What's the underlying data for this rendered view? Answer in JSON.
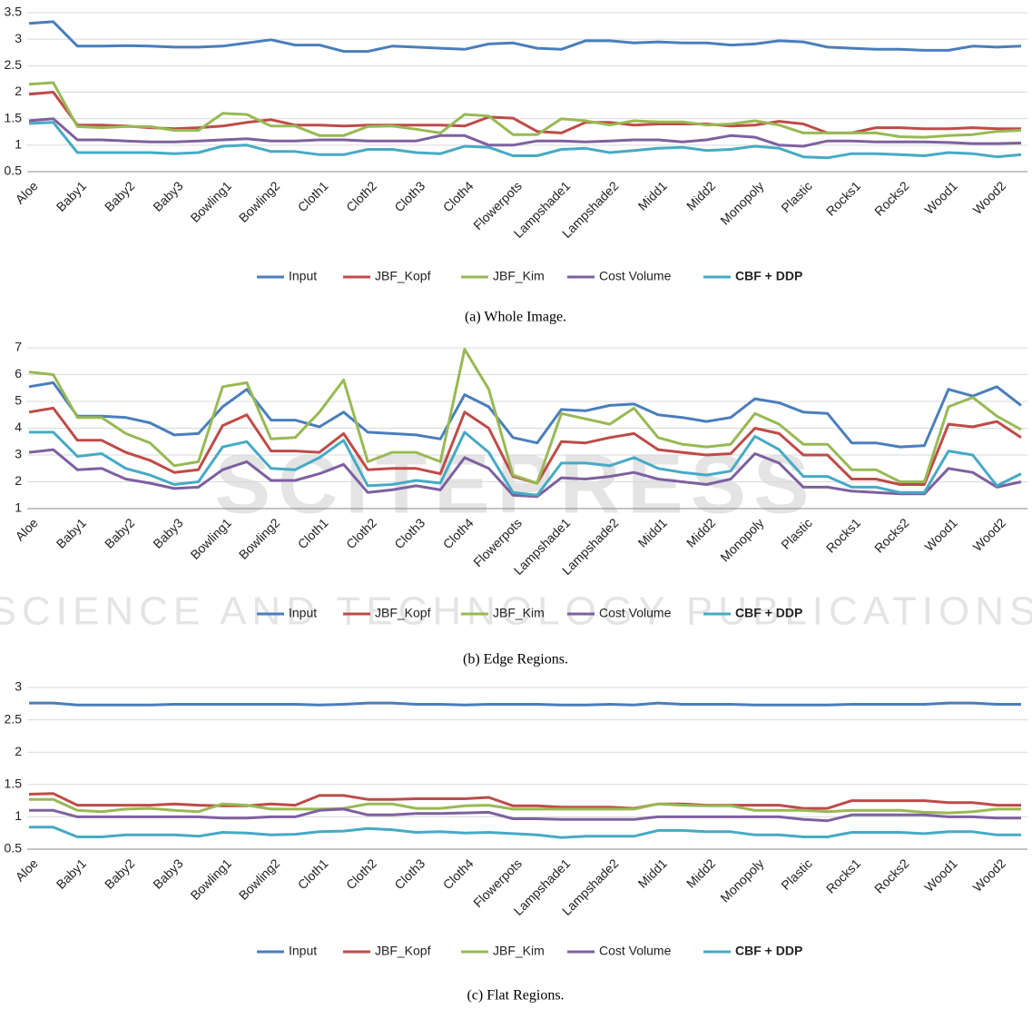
{
  "chart_data": [
    {
      "type": "line",
      "caption": "(a) Whole Image.",
      "categories": [
        "Aloe",
        null,
        "Baby1",
        null,
        "Baby2",
        null,
        "Baby3",
        null,
        "Bowling1",
        null,
        "Bowling2",
        null,
        "Cloth1",
        null,
        "Cloth2",
        null,
        "Cloth3",
        null,
        "Cloth4",
        null,
        "Flowerpots",
        null,
        "Lampshade1",
        null,
        "Lampshade2",
        null,
        "Midd1",
        null,
        "Midd2",
        null,
        "Monopoly",
        null,
        "Plastic",
        null,
        "Rocks1",
        null,
        "Rocks2",
        null,
        "Wood1",
        null,
        "Wood2",
        null
      ],
      "ylim": [
        0.5,
        3.5
      ],
      "yticks": [
        0.5,
        1,
        1.5,
        2,
        2.5,
        3,
        3.5
      ],
      "grid": true,
      "series": [
        {
          "name": "Input",
          "color": "#4a7ebb",
          "values": [
            3.3,
            3.33,
            2.87,
            2.87,
            2.88,
            2.87,
            2.85,
            2.85,
            2.87,
            2.93,
            2.99,
            2.89,
            2.89,
            2.77,
            2.77,
            2.87,
            2.85,
            2.83,
            2.81,
            2.91,
            2.93,
            2.83,
            2.81,
            2.97,
            2.97,
            2.93,
            2.95,
            2.93,
            2.93,
            2.89,
            2.91,
            2.97,
            2.95,
            2.85,
            2.83,
            2.81,
            2.81,
            2.79,
            2.79,
            2.87,
            2.85,
            2.87
          ]
        },
        {
          "name": "JBF_Kopf",
          "color": "#be4b48",
          "values": [
            1.96,
            2.0,
            1.38,
            1.38,
            1.36,
            1.33,
            1.31,
            1.33,
            1.36,
            1.43,
            1.48,
            1.38,
            1.38,
            1.36,
            1.38,
            1.38,
            1.38,
            1.38,
            1.36,
            1.53,
            1.51,
            1.26,
            1.23,
            1.43,
            1.43,
            1.38,
            1.4,
            1.4,
            1.4,
            1.36,
            1.38,
            1.45,
            1.4,
            1.23,
            1.23,
            1.33,
            1.33,
            1.31,
            1.31,
            1.33,
            1.31,
            1.31
          ]
        },
        {
          "name": "JBF_Kim",
          "color": "#98b954",
          "values": [
            2.15,
            2.18,
            1.35,
            1.33,
            1.35,
            1.35,
            1.28,
            1.28,
            1.6,
            1.58,
            1.36,
            1.36,
            1.18,
            1.18,
            1.35,
            1.36,
            1.3,
            1.23,
            1.58,
            1.55,
            1.2,
            1.2,
            1.5,
            1.46,
            1.38,
            1.46,
            1.44,
            1.44,
            1.38,
            1.4,
            1.46,
            1.38,
            1.23,
            1.23,
            1.23,
            1.23,
            1.16,
            1.15,
            1.18,
            1.2,
            1.26,
            1.28
          ]
        },
        {
          "name": "Cost Volume",
          "color": "#7d60a0",
          "values": [
            1.46,
            1.5,
            1.1,
            1.1,
            1.08,
            1.06,
            1.06,
            1.08,
            1.1,
            1.12,
            1.08,
            1.08,
            1.1,
            1.1,
            1.08,
            1.08,
            1.08,
            1.18,
            1.18,
            1.0,
            1.0,
            1.08,
            1.08,
            1.06,
            1.08,
            1.1,
            1.1,
            1.06,
            1.1,
            1.18,
            1.15,
            1.0,
            0.98,
            1.08,
            1.08,
            1.06,
            1.06,
            1.06,
            1.05,
            1.03,
            1.03,
            1.04
          ]
        },
        {
          "name": "CBF + DDP",
          "color": "#46aac5",
          "values": [
            1.41,
            1.43,
            0.86,
            0.86,
            0.86,
            0.86,
            0.84,
            0.86,
            0.98,
            1.0,
            0.88,
            0.88,
            0.82,
            0.82,
            0.92,
            0.92,
            0.86,
            0.84,
            0.98,
            0.96,
            0.8,
            0.8,
            0.92,
            0.94,
            0.86,
            0.9,
            0.94,
            0.96,
            0.9,
            0.92,
            0.98,
            0.94,
            0.78,
            0.76,
            0.84,
            0.84,
            0.82,
            0.8,
            0.86,
            0.84,
            0.78,
            0.82
          ]
        }
      ]
    },
    {
      "type": "line",
      "caption": "(b) Edge Regions.",
      "categories": [
        "Aloe",
        null,
        "Baby1",
        null,
        "Baby2",
        null,
        "Baby3",
        null,
        "Bowling1",
        null,
        "Bowling2",
        null,
        "Cloth1",
        null,
        "Cloth2",
        null,
        "Cloth3",
        null,
        "Cloth4",
        null,
        "Flowerpots",
        null,
        "Lampshade1",
        null,
        "Lampshade2",
        null,
        "Midd1",
        null,
        "Midd2",
        null,
        "Monopoly",
        null,
        "Plastic",
        null,
        "Rocks1",
        null,
        "Rocks2",
        null,
        "Wood1",
        null,
        "Wood2",
        null
      ],
      "ylim": [
        1,
        7
      ],
      "yticks": [
        1,
        2,
        3,
        4,
        5,
        6,
        7
      ],
      "grid": true,
      "series": [
        {
          "name": "Input",
          "color": "#4a7ebb",
          "values": [
            5.55,
            5.7,
            4.45,
            4.45,
            4.4,
            4.2,
            3.75,
            3.8,
            4.8,
            5.45,
            4.3,
            4.3,
            4.05,
            4.6,
            3.85,
            3.8,
            3.75,
            3.6,
            5.25,
            4.8,
            3.65,
            3.45,
            4.7,
            4.65,
            4.85,
            4.9,
            4.5,
            4.4,
            4.25,
            4.4,
            5.1,
            4.95,
            4.6,
            4.55,
            3.45,
            3.45,
            3.3,
            3.35,
            5.45,
            5.2,
            5.55,
            4.85
          ]
        },
        {
          "name": "JBF_Kopf",
          "color": "#be4b48",
          "values": [
            4.6,
            4.75,
            3.55,
            3.55,
            3.1,
            2.8,
            2.35,
            2.45,
            4.1,
            4.5,
            3.15,
            3.15,
            3.1,
            3.8,
            2.45,
            2.5,
            2.5,
            2.3,
            4.6,
            4.0,
            2.2,
            1.95,
            3.5,
            3.45,
            3.65,
            3.8,
            3.2,
            3.1,
            3.0,
            3.05,
            4.0,
            3.8,
            3.0,
            3.0,
            2.1,
            2.1,
            1.9,
            1.9,
            4.15,
            4.05,
            4.25,
            3.65
          ]
        },
        {
          "name": "JBF_Kim",
          "color": "#98b954",
          "values": [
            6.1,
            6.0,
            4.4,
            4.4,
            3.8,
            3.45,
            2.6,
            2.75,
            5.55,
            5.7,
            3.6,
            3.65,
            4.6,
            5.8,
            2.75,
            3.1,
            3.1,
            2.75,
            6.95,
            5.45,
            2.25,
            1.95,
            4.55,
            4.35,
            4.15,
            4.75,
            3.65,
            3.4,
            3.3,
            3.4,
            4.55,
            4.15,
            3.4,
            3.4,
            2.45,
            2.45,
            2.0,
            2.0,
            4.8,
            5.15,
            4.45,
            3.95
          ]
        },
        {
          "name": "Cost Volume",
          "color": "#7d60a0",
          "values": [
            3.1,
            3.2,
            2.45,
            2.5,
            2.1,
            1.95,
            1.75,
            1.8,
            2.45,
            2.75,
            2.05,
            2.05,
            2.3,
            2.65,
            1.6,
            1.7,
            1.85,
            1.7,
            2.9,
            2.5,
            1.5,
            1.45,
            2.15,
            2.1,
            2.2,
            2.35,
            2.1,
            2.0,
            1.9,
            2.1,
            3.05,
            2.7,
            1.8,
            1.8,
            1.65,
            1.6,
            1.55,
            1.55,
            2.5,
            2.35,
            1.8,
            2.0
          ]
        },
        {
          "name": "CBF + DDP",
          "color": "#46aac5",
          "values": [
            3.85,
            3.85,
            2.95,
            3.05,
            2.5,
            2.25,
            1.9,
            2.0,
            3.3,
            3.5,
            2.5,
            2.45,
            2.9,
            3.55,
            1.85,
            1.9,
            2.05,
            1.95,
            3.85,
            3.1,
            1.6,
            1.5,
            2.7,
            2.7,
            2.6,
            2.9,
            2.5,
            2.35,
            2.25,
            2.4,
            3.7,
            3.2,
            2.2,
            2.2,
            1.8,
            1.8,
            1.6,
            1.6,
            3.15,
            3.0,
            1.85,
            2.3
          ]
        }
      ]
    },
    {
      "type": "line",
      "caption": "(c) Flat Regions.",
      "categories": [
        "Aloe",
        null,
        "Baby1",
        null,
        "Baby2",
        null,
        "Baby3",
        null,
        "Bowling1",
        null,
        "Bowling2",
        null,
        "Cloth1",
        null,
        "Cloth2",
        null,
        "Cloth3",
        null,
        "Cloth4",
        null,
        "Flowerpots",
        null,
        "Lampshade1",
        null,
        "Lampshade2",
        null,
        "Midd1",
        null,
        "Midd2",
        null,
        "Monopoly",
        null,
        "Plastic",
        null,
        "Rocks1",
        null,
        "Rocks2",
        null,
        "Wood1",
        null,
        "Wood2",
        null
      ],
      "ylim": [
        0.5,
        3
      ],
      "yticks": [
        0.5,
        1,
        1.5,
        2,
        2.5,
        3
      ],
      "grid": true,
      "series": [
        {
          "name": "Input",
          "color": "#4a7ebb",
          "values": [
            2.76,
            2.76,
            2.73,
            2.73,
            2.73,
            2.73,
            2.74,
            2.74,
            2.74,
            2.74,
            2.74,
            2.74,
            2.73,
            2.74,
            2.76,
            2.76,
            2.74,
            2.74,
            2.73,
            2.74,
            2.74,
            2.74,
            2.73,
            2.73,
            2.74,
            2.73,
            2.76,
            2.74,
            2.74,
            2.74,
            2.73,
            2.73,
            2.73,
            2.73,
            2.74,
            2.74,
            2.74,
            2.74,
            2.76,
            2.76,
            2.74,
            2.74
          ]
        },
        {
          "name": "JBF_Kopf",
          "color": "#be4b48",
          "values": [
            1.35,
            1.36,
            1.18,
            1.18,
            1.18,
            1.18,
            1.2,
            1.18,
            1.17,
            1.17,
            1.2,
            1.18,
            1.33,
            1.33,
            1.27,
            1.27,
            1.28,
            1.28,
            1.28,
            1.3,
            1.17,
            1.17,
            1.15,
            1.15,
            1.15,
            1.13,
            1.2,
            1.2,
            1.18,
            1.18,
            1.18,
            1.18,
            1.13,
            1.13,
            1.25,
            1.25,
            1.25,
            1.25,
            1.22,
            1.22,
            1.18,
            1.18
          ]
        },
        {
          "name": "JBF_Kim",
          "color": "#98b954",
          "values": [
            1.27,
            1.27,
            1.1,
            1.08,
            1.12,
            1.13,
            1.1,
            1.08,
            1.2,
            1.18,
            1.12,
            1.12,
            1.12,
            1.13,
            1.2,
            1.2,
            1.13,
            1.13,
            1.17,
            1.18,
            1.12,
            1.12,
            1.12,
            1.12,
            1.12,
            1.12,
            1.2,
            1.18,
            1.17,
            1.17,
            1.1,
            1.1,
            1.1,
            1.08,
            1.1,
            1.1,
            1.1,
            1.07,
            1.06,
            1.08,
            1.12,
            1.12
          ]
        },
        {
          "name": "Cost Volume",
          "color": "#7d60a0",
          "values": [
            1.1,
            1.1,
            1.0,
            1.0,
            1.0,
            1.0,
            1.0,
            1.0,
            0.98,
            0.98,
            1.0,
            1.0,
            1.1,
            1.12,
            1.03,
            1.03,
            1.05,
            1.05,
            1.06,
            1.07,
            0.97,
            0.97,
            0.96,
            0.96,
            0.96,
            0.96,
            1.0,
            1.0,
            1.0,
            1.0,
            1.0,
            1.0,
            0.96,
            0.94,
            1.03,
            1.03,
            1.03,
            1.03,
            1.0,
            1.0,
            0.98,
            0.98
          ]
        },
        {
          "name": "CBF + DDP",
          "color": "#46aac5",
          "values": [
            0.84,
            0.84,
            0.69,
            0.69,
            0.72,
            0.72,
            0.72,
            0.7,
            0.76,
            0.75,
            0.72,
            0.73,
            0.77,
            0.78,
            0.82,
            0.8,
            0.76,
            0.77,
            0.75,
            0.76,
            0.74,
            0.72,
            0.68,
            0.7,
            0.7,
            0.7,
            0.79,
            0.79,
            0.77,
            0.77,
            0.72,
            0.72,
            0.69,
            0.69,
            0.76,
            0.76,
            0.76,
            0.74,
            0.77,
            0.77,
            0.72,
            0.72
          ]
        }
      ]
    }
  ],
  "watermark": [
    "SCITEPRESS",
    "SCIENCE AND TECHNOLOGY PUBLICATIONS"
  ]
}
